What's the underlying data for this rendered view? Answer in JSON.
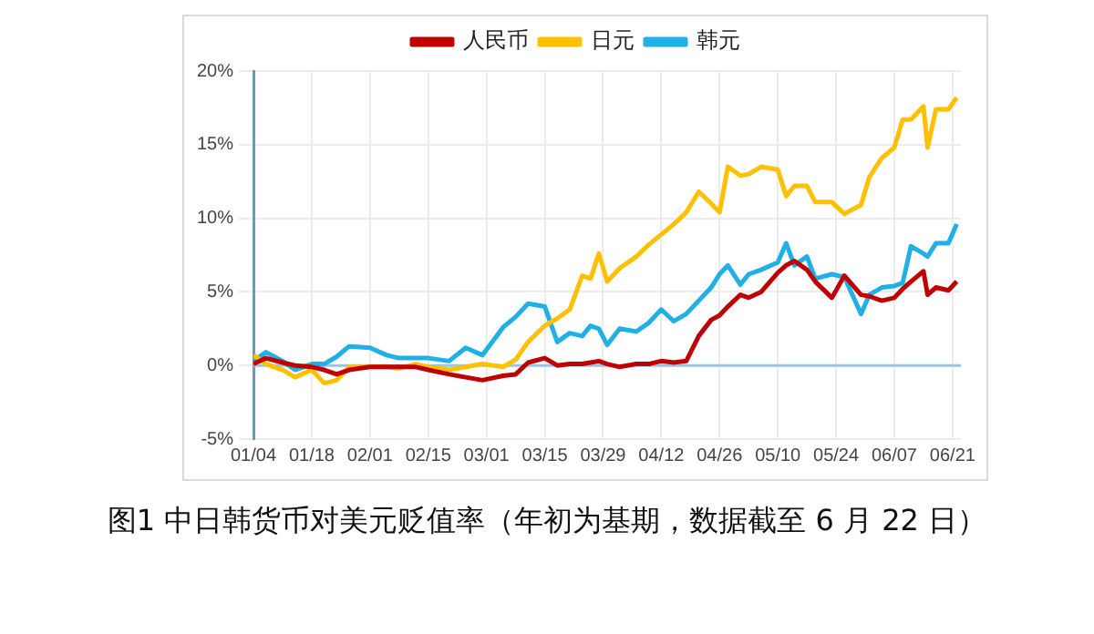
{
  "chart_data": {
    "type": "line",
    "title": "图1 中日韩货币对美元贬值率（年初为基期，数据截至 6 月 22 日）",
    "x": [
      "--01-04",
      "--01-07",
      "--01-11",
      "--01-14",
      "--01-18",
      "--01-21",
      "--01-24",
      "--01-27",
      "--02-01",
      "--02-05",
      "--02-08",
      "--02-12",
      "--02-15",
      "--02-20",
      "--02-24",
      "--02-28",
      "--03-05",
      "--03-08",
      "--03-11",
      "--03-15",
      "--03-18",
      "--03-21",
      "--03-24",
      "--03-26",
      "--03-28",
      "--03-30",
      "--04-02",
      "--04-06",
      "--04-09",
      "--04-12",
      "--04-15",
      "--04-18",
      "--04-21",
      "--04-24",
      "--04-26",
      "--04-28",
      "--05-01",
      "--05-03",
      "--05-06",
      "--05-10",
      "--05-12",
      "--05-14",
      "--05-17",
      "--05-19",
      "--05-23",
      "--05-26",
      "--05-30",
      "--06-01",
      "--06-04",
      "--06-07",
      "--06-09",
      "--06-11",
      "--06-14",
      "--06-15",
      "--06-17",
      "--06-20",
      "--06-22"
    ],
    "series": [
      {
        "name": "人民币",
        "color": "#c00000",
        "values": [
          0.1,
          0.5,
          0.2,
          0,
          -0.1,
          -0.3,
          -0.6,
          -0.3,
          -0.1,
          -0.1,
          -0.1,
          -0.1,
          -0.3,
          -0.6,
          -0.8,
          -1.0,
          -0.7,
          -0.6,
          0.2,
          0.5,
          0.0,
          0.1,
          0.1,
          0.2,
          0.3,
          0.1,
          -0.1,
          0.1,
          0.1,
          0.3,
          0.2,
          0.3,
          2.0,
          3.1,
          3.4,
          4.0,
          4.8,
          4.6,
          5.0,
          6.3,
          6.8,
          7.1,
          6.5,
          5.7,
          4.6,
          6.1,
          4.8,
          4.7,
          4.4,
          4.6,
          5.2,
          5.7,
          6.4,
          4.8,
          5.3,
          5.1,
          5.7
        ]
      },
      {
        "name": "日元",
        "color": "#ffc000",
        "values": [
          0.7,
          0.1,
          -0.3,
          -0.8,
          -0.3,
          -1.2,
          -1.0,
          -0.1,
          -0.1,
          -0.1,
          -0.2,
          0.1,
          -0.1,
          -0.3,
          -0.1,
          0.1,
          -0.1,
          0.4,
          1.6,
          2.7,
          3.2,
          3.8,
          6.1,
          5.9,
          7.6,
          5.7,
          6.6,
          7.4,
          8.2,
          8.9,
          9.6,
          10.4,
          11.8,
          11.0,
          10.4,
          13.5,
          12.9,
          13.0,
          13.5,
          13.3,
          11.5,
          12.2,
          12.2,
          11.1,
          11.1,
          10.3,
          10.9,
          12.8,
          14.1,
          14.8,
          16.7,
          16.7,
          17.6,
          14.8,
          17.4,
          17.4,
          18.2
        ]
      },
      {
        "name": "韩元",
        "color": "#1fb0e6",
        "values": [
          0.3,
          0.9,
          0.3,
          -0.3,
          0.1,
          0.1,
          0.6,
          1.3,
          1.2,
          0.7,
          0.5,
          0.5,
          0.5,
          0.3,
          1.2,
          0.7,
          2.6,
          3.3,
          4.2,
          4.0,
          1.6,
          2.2,
          2.0,
          2.7,
          2.5,
          1.4,
          2.5,
          2.3,
          2.9,
          3.8,
          3.0,
          3.5,
          4.4,
          5.3,
          6.2,
          6.8,
          5.5,
          6.2,
          6.5,
          7.0,
          8.3,
          6.8,
          7.4,
          5.9,
          6.2,
          6.0,
          3.5,
          4.8,
          5.3,
          5.4,
          5.6,
          8.1,
          7.6,
          7.4,
          8.3,
          8.3,
          9.6
        ]
      }
    ],
    "xlim": [
      "--01-04",
      "--06-23"
    ],
    "xticks": [
      {
        "value": "--01-04",
        "label": "01/04"
      },
      {
        "value": "--01-18",
        "label": "01/18"
      },
      {
        "value": "--02-01",
        "label": "02/01"
      },
      {
        "value": "--02-15",
        "label": "02/15"
      },
      {
        "value": "--03-01",
        "label": "03/01"
      },
      {
        "value": "--03-15",
        "label": "03/15"
      },
      {
        "value": "--03-29",
        "label": "03/29"
      },
      {
        "value": "--04-12",
        "label": "04/12"
      },
      {
        "value": "--04-26",
        "label": "04/26"
      },
      {
        "value": "--05-10",
        "label": "05/10"
      },
      {
        "value": "--05-24",
        "label": "05/24"
      },
      {
        "value": "--06-07",
        "label": "06/07"
      },
      {
        "value": "--06-21",
        "label": "06/21"
      }
    ],
    "ylim": [
      -5,
      20
    ],
    "yticks": [
      {
        "value": -5,
        "label": "-5%"
      },
      {
        "value": 0,
        "label": "0%"
      },
      {
        "value": 5,
        "label": "5%"
      },
      {
        "value": 10,
        "label": "10%"
      },
      {
        "value": 15,
        "label": "15%"
      },
      {
        "value": 20,
        "label": "20%"
      }
    ],
    "ref_lines": [
      {
        "axis": "y",
        "value": 0,
        "color": "#9dc3e6"
      }
    ],
    "grid": true,
    "legend": "top",
    "marker": "none",
    "line_style": "solid"
  }
}
